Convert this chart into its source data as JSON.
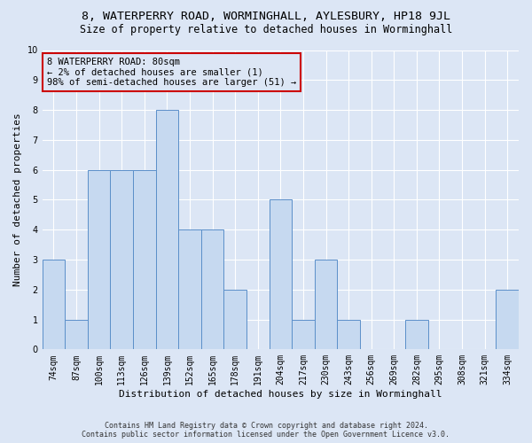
{
  "title": "8, WATERPERRY ROAD, WORMINGHALL, AYLESBURY, HP18 9JL",
  "subtitle": "Size of property relative to detached houses in Worminghall",
  "xlabel": "Distribution of detached houses by size in Worminghall",
  "ylabel": "Number of detached properties",
  "footer_line1": "Contains HM Land Registry data © Crown copyright and database right 2024.",
  "footer_line2": "Contains public sector information licensed under the Open Government Licence v3.0.",
  "categories": [
    "74sqm",
    "87sqm",
    "100sqm",
    "113sqm",
    "126sqm",
    "139sqm",
    "152sqm",
    "165sqm",
    "178sqm",
    "191sqm",
    "204sqm",
    "217sqm",
    "230sqm",
    "243sqm",
    "256sqm",
    "269sqm",
    "282sqm",
    "295sqm",
    "308sqm",
    "321sqm",
    "334sqm"
  ],
  "values": [
    3,
    1,
    6,
    6,
    6,
    8,
    4,
    4,
    2,
    0,
    5,
    1,
    3,
    1,
    0,
    0,
    1,
    0,
    0,
    0,
    2
  ],
  "bar_color": "#c6d9f0",
  "bar_edge_color": "#5b8fc9",
  "annotation_box_color": "#cc0000",
  "annotation_lines": [
    "8 WATERPERRY ROAD: 80sqm",
    "← 2% of detached houses are smaller (1)",
    "98% of semi-detached houses are larger (51) →"
  ],
  "ylim": [
    0,
    10
  ],
  "yticks": [
    0,
    1,
    2,
    3,
    4,
    5,
    6,
    7,
    8,
    9,
    10
  ],
  "bg_color": "#dce6f5",
  "grid_color": "#ffffff",
  "title_fontsize": 9.5,
  "subtitle_fontsize": 8.5,
  "ylabel_fontsize": 8,
  "xlabel_fontsize": 8,
  "tick_fontsize": 7,
  "annotation_fontsize": 7.5,
  "footer_fontsize": 6
}
